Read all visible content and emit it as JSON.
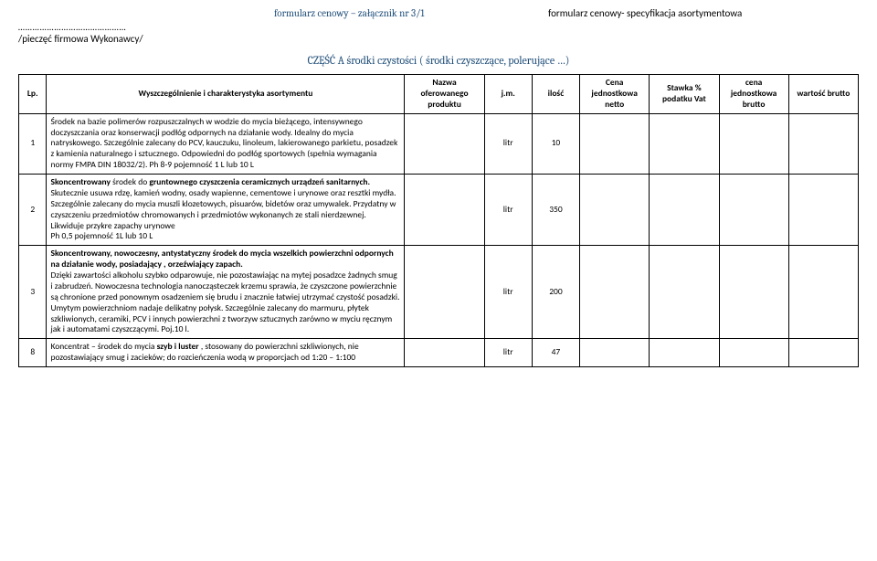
{
  "header": {
    "title_center": "formularz cenowy – załącznik nr 3/1",
    "title_right": "formularz cenowy- specyfikacja asortymentowa",
    "dotted": "………………………………………",
    "stamp": "/pieczęć firmowa Wykonawcy/",
    "part_a": "CZĘŚĆ A środki czystości ( środki czyszczące, polerujące …)"
  },
  "columns": {
    "lp": "Lp.",
    "desc": "Wyszczególnienie i charakterystyka asortymentu",
    "name": "Nazwa oferowanego produktu",
    "unit": "j.m.",
    "qty": "ilość",
    "net": "Cena jednostkowa netto",
    "vat": "Stawka % podatku Vat",
    "unitgross": "cena jednostkowa brutto",
    "gross": "wartość brutto"
  },
  "rows": [
    {
      "lp": "1",
      "desc_html": "Środek na bazie polimerów rozpuszczalnych w wodzie do mycia bieżącego, intensywnego doczyszczania oraz konserwacji podłóg odpornych na działanie wody. Idealny do mycia natryskowego. Szczególnie zalecany do PCV, kauczuku, linoleum, lakierowanego parkietu, posadzek z kamienia naturalnego i sztucznego. Odpowiedni do podłóg sportowych (spełnia wymagania normy FMPA DIN 18032/2). Ph 8-9  pojemność 1 L lub 10 L",
      "unit": "litr",
      "qty": "10"
    },
    {
      "lp": "2",
      "desc_html": "<span class='b'>Skoncentrowany</span> środek do <span class='b'>gruntownego czyszczenia ceramicznych urządzeń sanitarnych.</span><br>Skutecznie usuwa rdzę, kamień wodny, osady wapienne, cementowe i urynowe oraz resztki mydła. Szczególnie zalecany do mycia muszli klozetowych, pisuarów, bidetów oraz umywalek. Przydatny w czyszczeniu przedmiotów chromowanych i przedmiotów wykonanych ze stali nierdzewnej. Likwiduje przykre zapachy urynowe<br>Ph 0,5   pojemność 1L lub 10 L",
      "unit": "litr",
      "qty": "350"
    },
    {
      "lp": "3",
      "desc_html": "<span class='b'>Skoncentrowany, nowoczesny, antystatyczny środek do mycia wszelkich powierzchni odpornych na działanie wody, posiadający , orzeźwiający zapach.</span><br>Dzięki zawartości alkoholu szybko odparowuje, nie pozostawiając na mytej posadzce żadnych smug i zabrudzeń. Nowoczesna technologia nanocząsteczek krzemu sprawia, że czyszczone powierzchnie są chronione przed ponownym osadzeniem się brudu i znacznie łatwiej utrzymać czystość posadzki. Umytym powierzchniom nadaje delikatny połysk. Szczególnie zalecany do marmuru, płytek szkliwionych, ceramiki, PCV i innych powierzchni z tworzyw sztucznych zarówno w myciu ręcznym jak i automatami czyszczącymi. Poj.10 l.",
      "unit": "litr",
      "qty": "200"
    },
    {
      "lp": "8",
      "desc_html": "Koncentrat – środek  do mycia <span class='b'>szyb i luster</span> ,  stosowany  do powierzchni szkliwionych,  nie pozostawiający smug i zacieków;  do rozcieńczenia wodą w proporcjach od  1:20 – 1:100",
      "unit": "litr",
      "qty": "47"
    }
  ]
}
